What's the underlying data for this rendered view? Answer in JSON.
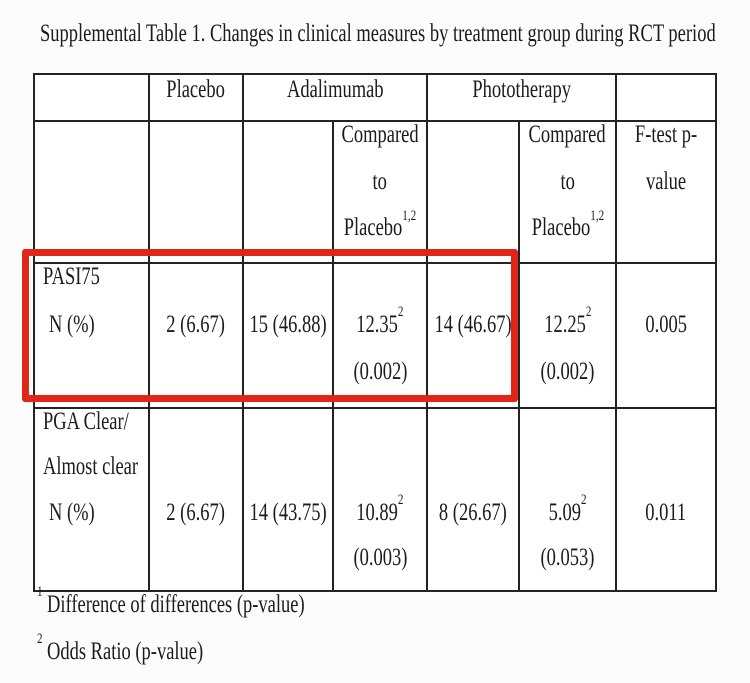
{
  "title": "Supplemental Table 1. Changes in clinical measures by treatment group during RCT period",
  "highlight_color": "#e1251b",
  "table": {
    "groups": {
      "placebo": "Placebo",
      "adalimumab": "Adalimumab",
      "phototherapy": "Phototherapy"
    },
    "subheaders": {
      "ada_compared": {
        "l1": "Compared",
        "l2": "to",
        "l3": "Placebo",
        "l3sup": "1,2"
      },
      "photo_compared": {
        "l1": "Compared",
        "l2": "to",
        "l3": "Placebo",
        "l3sup": "1,2"
      },
      "ftest": {
        "l1": "F-test p-",
        "l2": "value"
      }
    },
    "rows": [
      {
        "label1": "PASI75",
        "label2": "N (%)",
        "placebo": "2 (6.67)",
        "ada_n": "15 (46.88)",
        "ada_or": "12.35",
        "ada_or_sup": "2",
        "ada_p": "(0.002)",
        "photo_n": "14 (46.67)",
        "photo_or": "12.25",
        "photo_or_sup": "2",
        "photo_p": "(0.002)",
        "ftest": "0.005"
      },
      {
        "label1": "PGA Clear/",
        "label2": "Almost clear",
        "label3": "N (%)",
        "placebo": "2 (6.67)",
        "ada_n": "14 (43.75)",
        "ada_or": "10.89",
        "ada_or_sup": "2",
        "ada_p": "(0.003)",
        "photo_n": "8 (26.67)",
        "photo_or": "5.09",
        "photo_or_sup": "2",
        "photo_p": "(0.053)",
        "ftest": "0.011"
      }
    ]
  },
  "footnotes": [
    {
      "sup": "1",
      "text": "Difference of differences (p-value)"
    },
    {
      "sup": "2",
      "text": "Odds Ratio (p-value)"
    }
  ]
}
